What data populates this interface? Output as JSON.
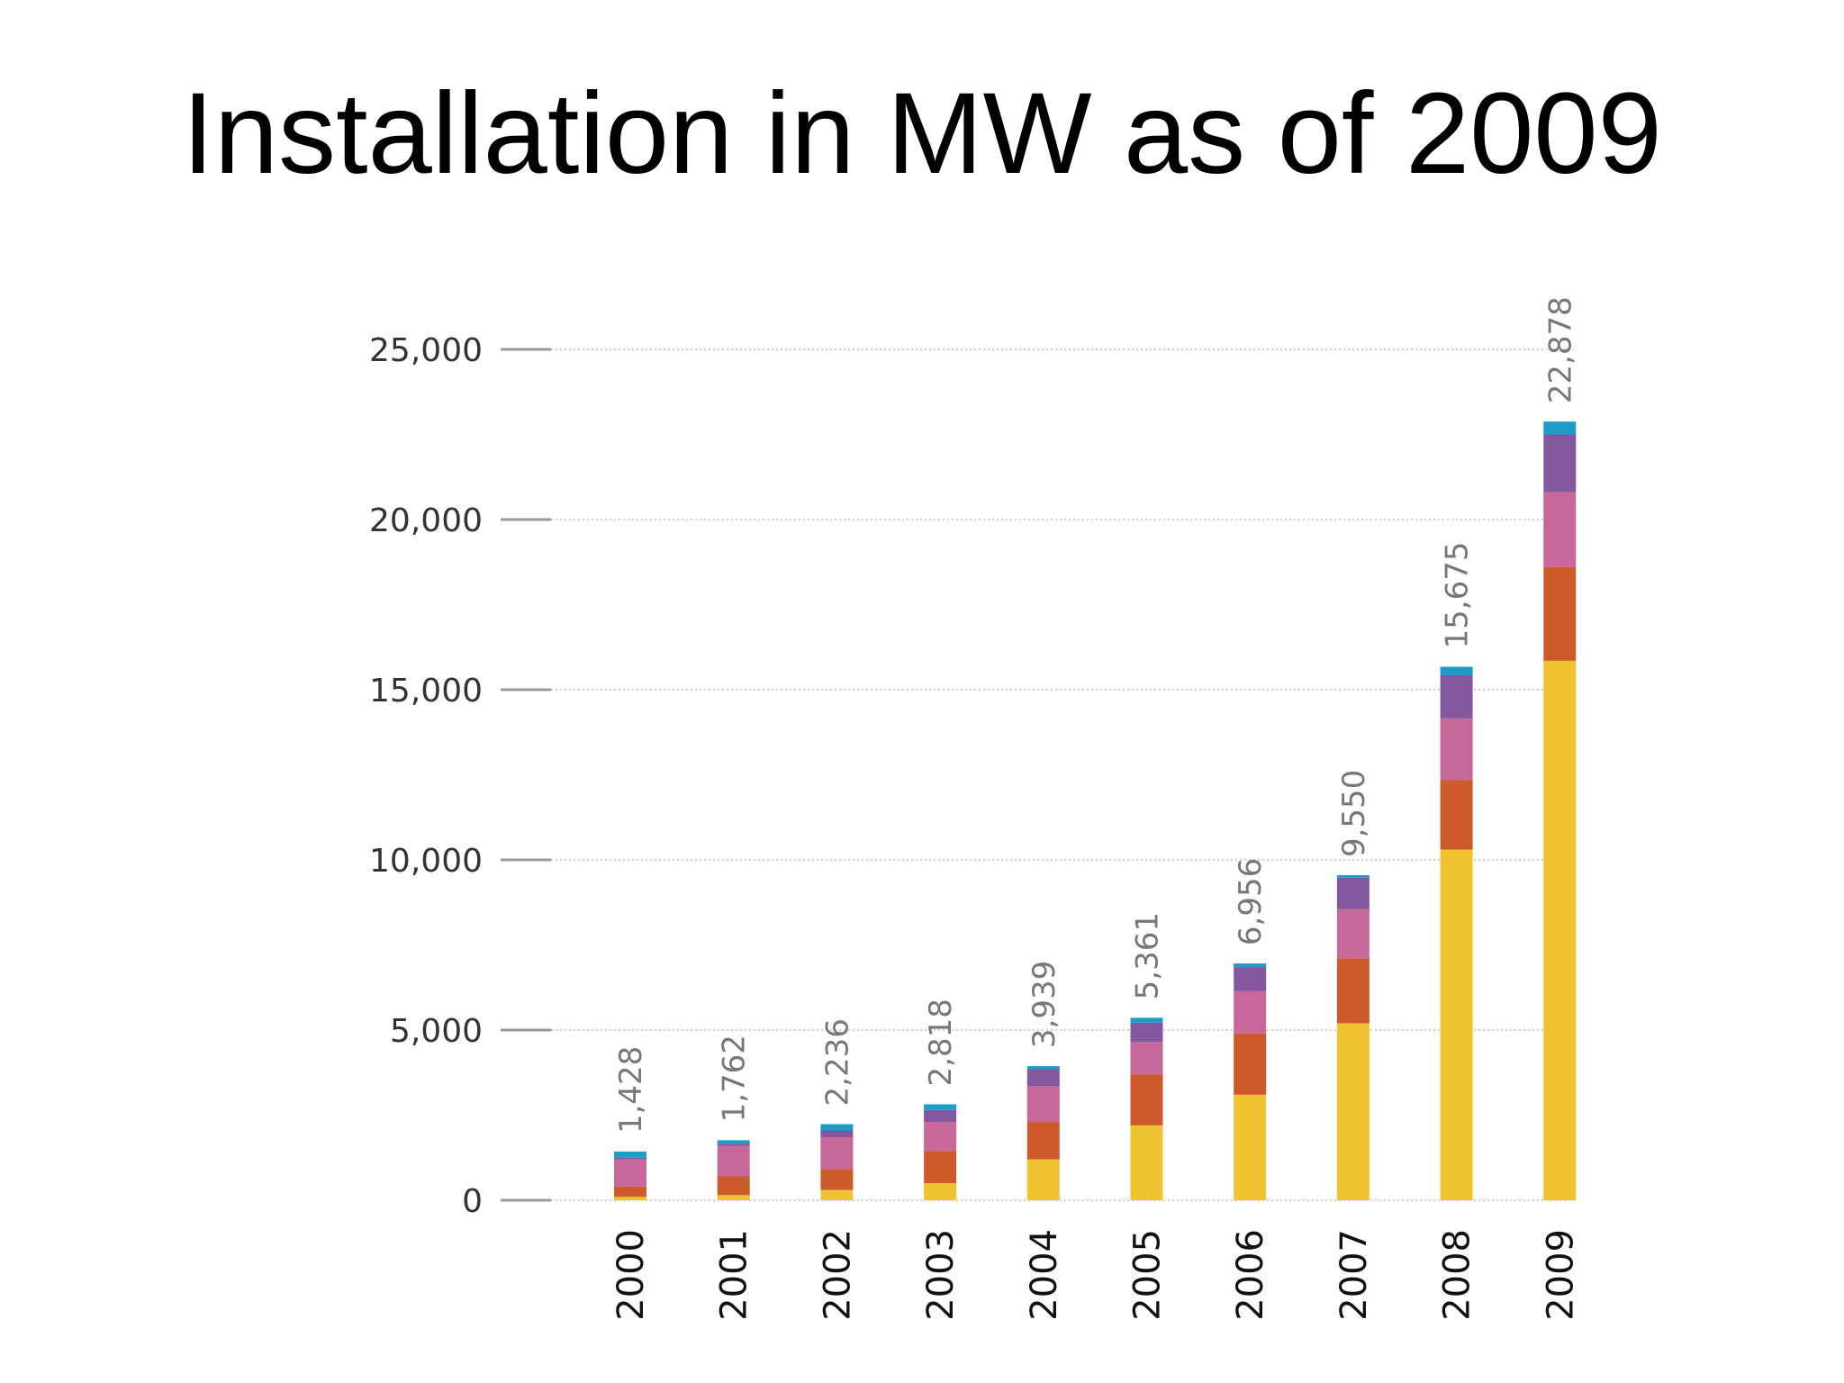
{
  "title": "Installation in MW as of 2009",
  "colors": {
    "segments": [
      "#EFC232",
      "#CC5A2A",
      "#C8679A",
      "#83589F",
      "#1F9BC8"
    ],
    "grid": "#cccccc",
    "axis": "#999999"
  },
  "chart_data": {
    "type": "bar",
    "stacked": true,
    "categories": [
      "2000",
      "2001",
      "2002",
      "2003",
      "2004",
      "2005",
      "2006",
      "2007",
      "2008",
      "2009"
    ],
    "totals": [
      1428,
      1762,
      2236,
      2818,
      3939,
      5361,
      6956,
      9550,
      15675,
      22878
    ],
    "total_labels": [
      "1,428",
      "1,762",
      "2,236",
      "2,818",
      "3,939",
      "5,361",
      "6,956",
      "9,550",
      "15,675",
      "22,878"
    ],
    "series": [
      {
        "values": [
          100,
          150,
          300,
          500,
          1200,
          2200,
          3100,
          5200,
          10300,
          15850
        ]
      },
      {
        "values": [
          300,
          550,
          600,
          950,
          1100,
          1500,
          1800,
          1900,
          2050,
          2750
        ]
      },
      {
        "values": [
          800,
          900,
          950,
          850,
          1050,
          950,
          1250,
          1450,
          1800,
          2200
        ]
      },
      {
        "values": [
          50,
          60,
          200,
          350,
          500,
          570,
          700,
          930,
          1275,
          1700
        ]
      },
      {
        "values": [
          178,
          102,
          186,
          168,
          89,
          141,
          106,
          70,
          250,
          378
        ]
      }
    ],
    "yticks": [
      0,
      5000,
      10000,
      15000,
      20000,
      25000
    ],
    "ytick_labels": [
      "0",
      "5,000",
      "10,000",
      "15,000",
      "20,000",
      "25,000"
    ],
    "ylim": [
      0,
      25000
    ],
    "grid": true,
    "legend": "none"
  }
}
